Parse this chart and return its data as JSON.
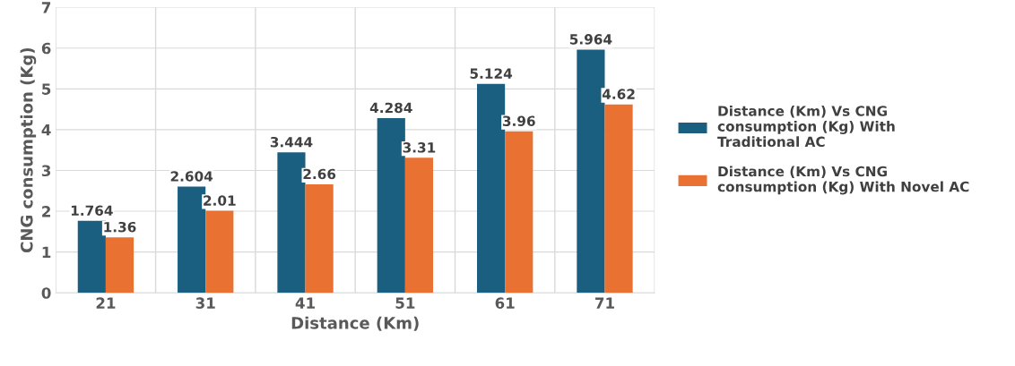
{
  "chart_data": {
    "type": "bar",
    "xlabel": "Distance (Km)",
    "ylabel": "CNG consumption (Kg)",
    "categories": [
      "21",
      "31",
      "41",
      "51",
      "61",
      "71"
    ],
    "series": [
      {
        "name": "Distance (Km) Vs CNG consumption (Kg) With Traditional AC",
        "color": "#1a5e80",
        "values": [
          1.764,
          2.604,
          3.444,
          4.284,
          5.124,
          5.964
        ]
      },
      {
        "name": "Distance (Km) Vs CNG consumption (Kg) With Novel AC",
        "color": "#e97132",
        "values": [
          1.36,
          2.01,
          2.66,
          3.31,
          3.96,
          4.62
        ]
      }
    ],
    "ylim": [
      0,
      7
    ],
    "yticks": [
      0,
      1,
      2,
      3,
      4,
      5,
      6,
      7
    ],
    "grid": true,
    "legend": "right",
    "data_labels": true
  }
}
